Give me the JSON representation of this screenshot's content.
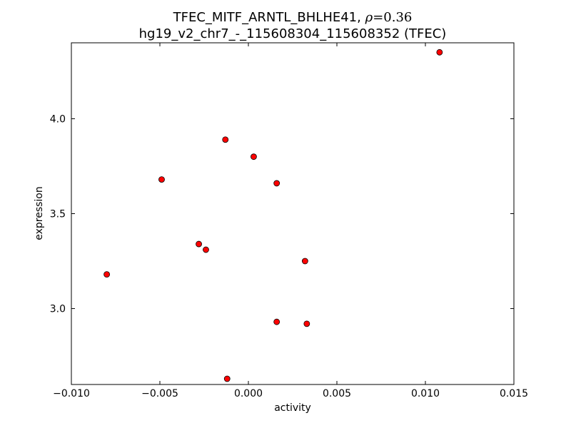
{
  "chart_data": {
    "type": "scatter",
    "title_prefix": "TFEC_MITF_ARNTL_BHLHE41, ",
    "title_rho_symbol": "ρ",
    "title_rho_value": "=0.36",
    "subtitle": "hg19_v2_chr7_-_115608304_115608352 (TFEC)",
    "xlabel": "activity",
    "ylabel": "expression",
    "xlim": [
      -0.01,
      0.015
    ],
    "ylim": [
      2.6,
      4.4
    ],
    "xticks": [
      -0.01,
      -0.005,
      0.0,
      0.005,
      0.01,
      0.015
    ],
    "xtick_labels": [
      "−0.010",
      "−0.005",
      "0.000",
      "0.005",
      "0.010",
      "0.015"
    ],
    "yticks": [
      3.0,
      3.5,
      4.0
    ],
    "ytick_labels": [
      "3.0",
      "3.5",
      "4.0"
    ],
    "grid": false,
    "marker_color": "#ff0000",
    "marker_edge_color": "#000000",
    "points": [
      {
        "x": 0.0108,
        "y": 4.35
      },
      {
        "x": -0.0013,
        "y": 3.89
      },
      {
        "x": 0.0003,
        "y": 3.8
      },
      {
        "x": -0.0049,
        "y": 3.68
      },
      {
        "x": 0.0016,
        "y": 3.66
      },
      {
        "x": -0.0028,
        "y": 3.34
      },
      {
        "x": -0.0024,
        "y": 3.31
      },
      {
        "x": -0.008,
        "y": 3.18
      },
      {
        "x": 0.0032,
        "y": 3.25
      },
      {
        "x": 0.0016,
        "y": 2.93
      },
      {
        "x": 0.0033,
        "y": 2.92
      },
      {
        "x": -0.0012,
        "y": 2.63
      }
    ]
  }
}
